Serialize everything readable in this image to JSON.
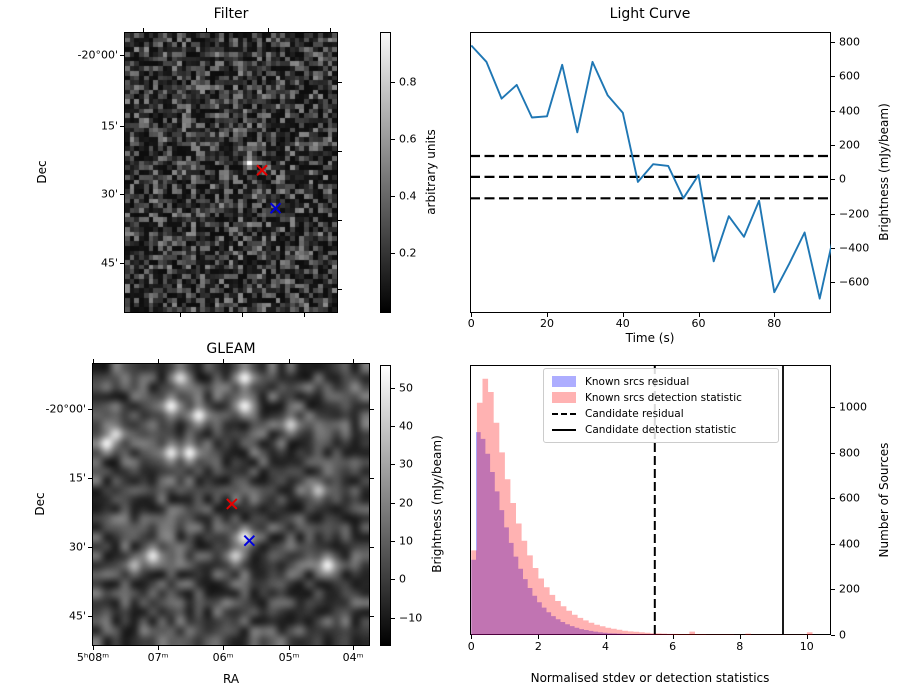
{
  "figure": {
    "background": "#ffffff"
  },
  "colors": {
    "line": "#1f77b4",
    "hist_residual": "#0000ff",
    "hist_detection": "#ff0000",
    "marker_red": "#e60000",
    "marker_blue": "#0000dd",
    "annotation_line": "#000000"
  },
  "chart_data": [
    {
      "id": "filter",
      "type": "heatmap",
      "title": "Filter",
      "ylabel": "Dec",
      "colorbar_label": "arbitrary units",
      "colorbar_tick_labels": [
        "0.8",
        "0.6",
        "0.4",
        "0.2"
      ],
      "colorbar_range": [
        0.0,
        0.97
      ],
      "ytick_labels": [
        "-20°00'",
        "15'",
        "30'",
        "45'"
      ],
      "colormap": "gray",
      "content": "blocky grayscale noise map with one bright compact source",
      "bright_spot": {
        "fx": 0.6,
        "fy": 0.465
      },
      "markers": [
        {
          "name": "candidate-position",
          "symbol": "x",
          "color": "#e60000",
          "fx": 0.645,
          "fy": 0.492
        },
        {
          "name": "comparison-position",
          "symbol": "x",
          "color": "#0000dd",
          "fx": 0.708,
          "fy": 0.627
        }
      ]
    },
    {
      "id": "light_curve",
      "type": "line",
      "title": "Light Curve",
      "xlabel": "Time (s)",
      "ylabel": "Brightness (mJy/beam)",
      "x": [
        0,
        4,
        8,
        12,
        16,
        20,
        24,
        28,
        32,
        36,
        40,
        44,
        48,
        52,
        56,
        60,
        64,
        68,
        72,
        76,
        80,
        84,
        88,
        92,
        96
      ],
      "y": [
        780,
        685,
        470,
        550,
        360,
        367,
        667,
        274,
        684,
        490,
        388,
        -15,
        88,
        78,
        -110,
        25,
        -478,
        -215,
        -335,
        -125,
        -658,
        -490,
        -310,
        -695,
        -295
      ],
      "hlines": [
        136,
        14,
        -111
      ],
      "hline_style": "dashed",
      "xticks": [
        0,
        20,
        40,
        60,
        80
      ],
      "yticks": [
        800,
        600,
        400,
        200,
        0,
        -200,
        -400,
        -600
      ],
      "xlim": [
        0,
        95
      ],
      "ylim": [
        -779,
        859
      ],
      "yaxis_side": "right",
      "line_color": "#1f77b4"
    },
    {
      "id": "gleam",
      "type": "heatmap",
      "title": "GLEAM",
      "xlabel": "RA",
      "ylabel": "Dec",
      "colorbar_label": "Brightness (mJy/beam)",
      "colorbar_tick_labels": [
        "50",
        "40",
        "30",
        "20",
        "10",
        "0",
        "-10"
      ],
      "colorbar_range": [
        -17,
        56
      ],
      "xtick_labels": [
        "5ʰ08ᵐ",
        "07ᵐ",
        "06ᵐ",
        "05ᵐ",
        "04ᵐ"
      ],
      "ytick_labels": [
        "-20°00'",
        "15'",
        "30'",
        "45'"
      ],
      "colormap": "gray",
      "content": "smooth blurred grayscale sky map with several bright point sources",
      "bright_spots": [
        [
          0.26,
          0.155,
          1.0
        ],
        [
          0.38,
          0.175,
          1.0
        ],
        [
          0.555,
          0.145,
          1.0
        ],
        [
          0.565,
          0.025,
          1.0
        ],
        [
          0.31,
          0.045,
          0.9
        ],
        [
          0.05,
          0.27,
          1.0
        ],
        [
          0.085,
          0.225,
          0.9
        ],
        [
          0.265,
          0.325,
          0.95
        ],
        [
          0.355,
          0.315,
          1.0
        ],
        [
          0.74,
          0.21,
          0.85
        ],
        [
          0.84,
          0.45,
          0.8
        ],
        [
          0.22,
          0.705,
          0.95
        ],
        [
          0.145,
          0.73,
          0.75
        ],
        [
          0.85,
          0.725,
          1.0
        ],
        [
          0.87,
          0.74,
          1.0
        ],
        [
          0.505,
          0.705,
          0.85
        ],
        [
          0.565,
          0.63,
          1.0
        ],
        [
          0.96,
          0.07,
          0.55
        ]
      ],
      "markers": [
        {
          "name": "candidate-position",
          "symbol": "x",
          "color": "#e60000",
          "fx": 0.503,
          "fy": 0.498
        },
        {
          "name": "comparison-position",
          "symbol": "x",
          "color": "#0000dd",
          "fx": 0.566,
          "fy": 0.628
        }
      ]
    },
    {
      "id": "histogram",
      "type": "bar",
      "xlabel": "Normalised stdev or detection statistics",
      "ylabel": "Number of Sources",
      "xticks": [
        0,
        2,
        4,
        6,
        8,
        10
      ],
      "yticks": [
        0,
        200,
        400,
        600,
        800,
        1000
      ],
      "xlim": [
        0,
        10.72
      ],
      "ylim": [
        0,
        1184
      ],
      "yaxis_side": "right",
      "series": [
        {
          "name": "Known srcs residual",
          "color": "#0000ff",
          "opacity": 0.35,
          "bin_start": 0,
          "bin_width": 0.14,
          "values": [
            330,
            890,
            860,
            795,
            715,
            630,
            548,
            472,
            404,
            344,
            291,
            245,
            206,
            172,
            144,
            120,
            100,
            83,
            69,
            57,
            47,
            39,
            32,
            26,
            22,
            18,
            15,
            12,
            10,
            8,
            7,
            6,
            5,
            4,
            3,
            3,
            2,
            2,
            2,
            1,
            1,
            1,
            1
          ]
        },
        {
          "name": "Known srcs detection statistic",
          "color": "#ff0000",
          "opacity": 0.3,
          "bin_start": 0,
          "bin_width": 0.1667,
          "values": [
            371,
            1019,
            1124,
            1066,
            931,
            801,
            683,
            579,
            489,
            413,
            349,
            294,
            248,
            209,
            176,
            149,
            126,
            106,
            89,
            75,
            64,
            54,
            45,
            38,
            32,
            27,
            23,
            19,
            16,
            14,
            12,
            10,
            8,
            7,
            6,
            5,
            5,
            4,
            4,
            15,
            3,
            3,
            2,
            2,
            2,
            2,
            2,
            1,
            1,
            6,
            1,
            1,
            1,
            1,
            1,
            1,
            1,
            1,
            1,
            1,
            12
          ]
        }
      ],
      "vlines": [
        {
          "name": "Candidate residual",
          "style": "dashed",
          "x": 5.47
        },
        {
          "name": "Candidate detection statistic",
          "style": "solid",
          "x": 9.29
        }
      ],
      "legend": {
        "entries": [
          {
            "label": "Known srcs residual",
            "swatch": "patch-blue"
          },
          {
            "label": "Known srcs detection statistic",
            "swatch": "patch-pink"
          },
          {
            "label": "Candidate residual",
            "swatch": "dashed-line"
          },
          {
            "label": "Candidate detection statistic",
            "swatch": "solid-line"
          }
        ],
        "position": "upper-left"
      }
    }
  ]
}
